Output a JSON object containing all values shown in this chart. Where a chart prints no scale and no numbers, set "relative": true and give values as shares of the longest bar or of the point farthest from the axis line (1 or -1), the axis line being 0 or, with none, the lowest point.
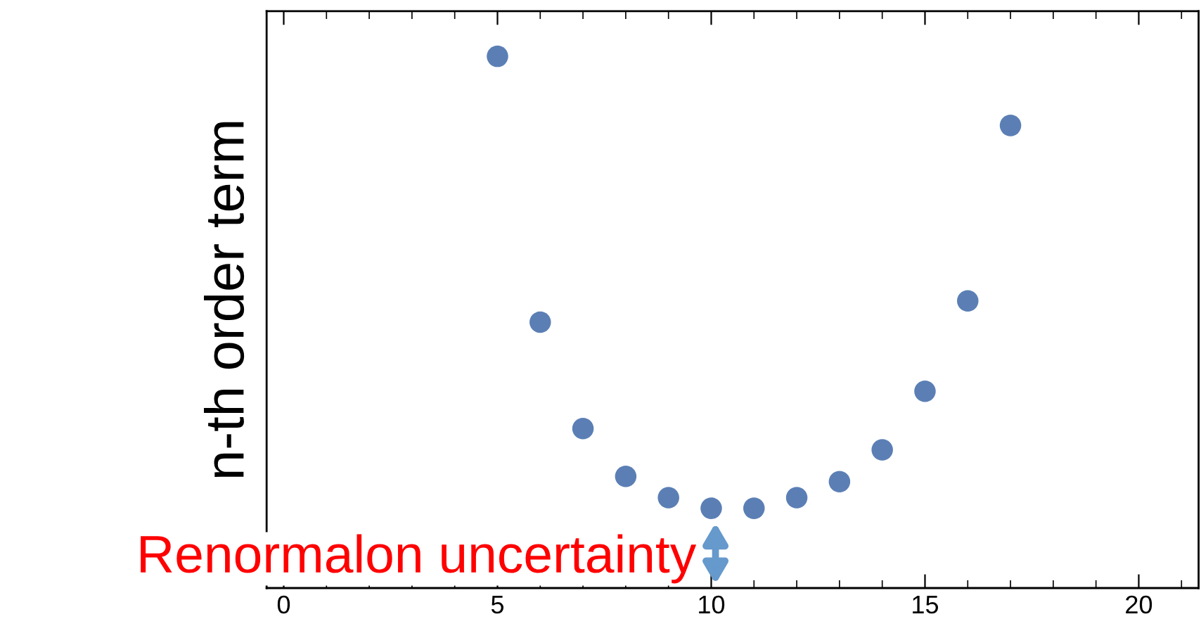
{
  "chart_data": {
    "type": "scatter",
    "relative": true,
    "ylabel": "n-th order term",
    "x": [
      5,
      6,
      7,
      8,
      9,
      10,
      11,
      12,
      13,
      14,
      15,
      16,
      17
    ],
    "series": [
      {
        "color": "#5b7fb5",
        "values": [
          1,
          0.5,
          0.3,
          0.21,
          0.17,
          0.15,
          0.15,
          0.17,
          0.2,
          0.26,
          0.37,
          0.54,
          0.87
        ]
      }
    ],
    "xlim": [
      -0.4,
      21.4
    ],
    "xticks": [
      0,
      5,
      10,
      15,
      20
    ],
    "marker": "circle",
    "annotations": [
      {
        "text": "Renormalon uncertainty",
        "x": 10,
        "y": 0.15
      }
    ]
  }
}
